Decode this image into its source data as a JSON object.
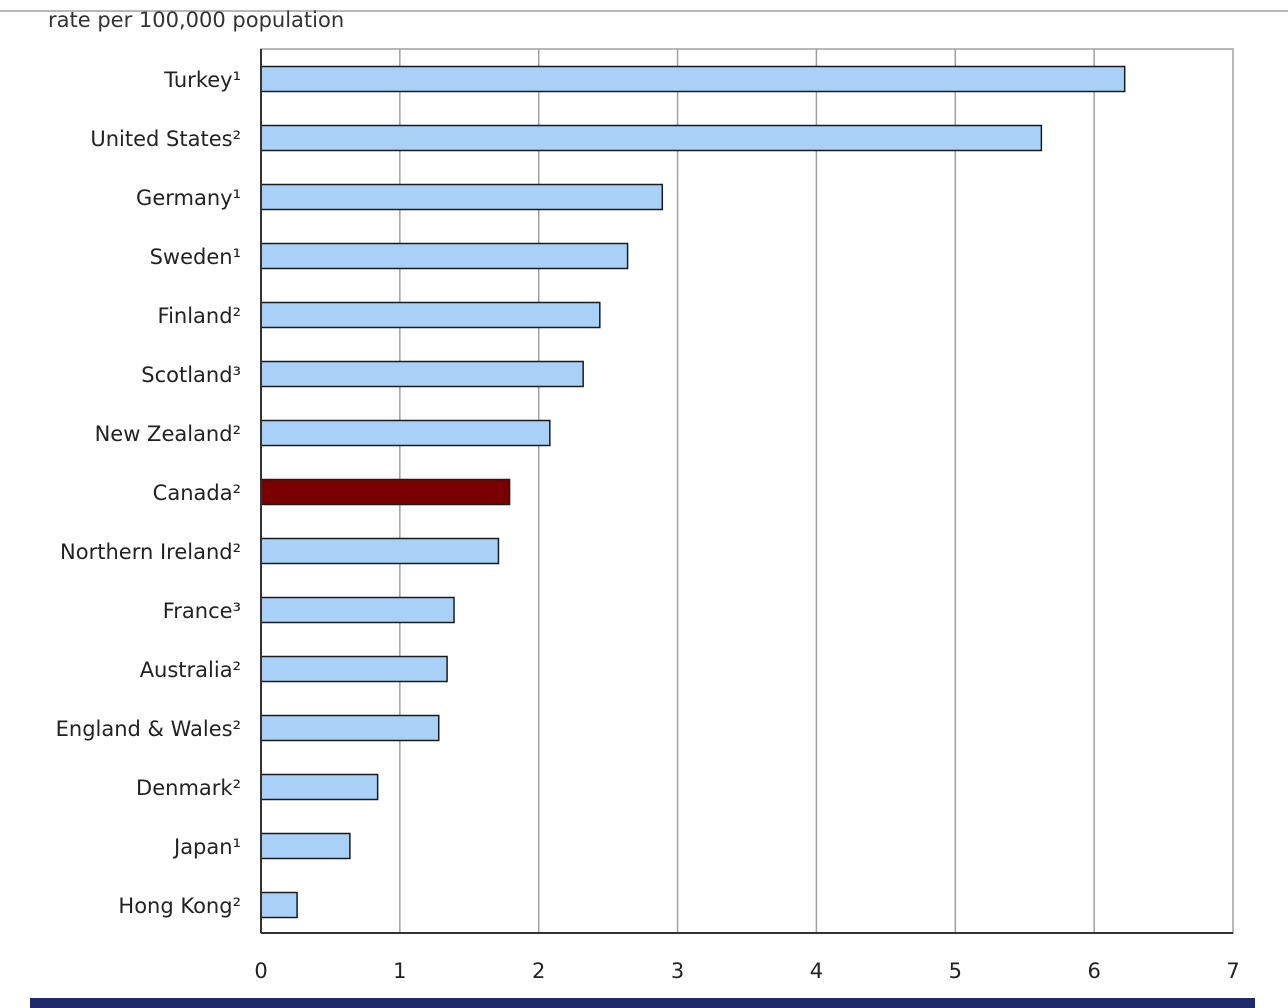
{
  "chart_data": {
    "type": "bar",
    "orientation": "horizontal",
    "title": "",
    "unit_label": "rate per 100,000 population",
    "xlabel": "",
    "ylabel": "",
    "categories": [
      "Turkey¹",
      "United States²",
      "Germany¹",
      "Sweden¹",
      "Finland²",
      "Scotland³",
      "New Zealand²",
      "Canada²",
      "Northern Ireland²",
      "France³",
      "Australia²",
      "England & Wales²",
      "Denmark²",
      "Japan¹",
      "Hong Kong²"
    ],
    "values": [
      6.22,
      5.62,
      2.89,
      2.64,
      2.44,
      2.32,
      2.08,
      1.79,
      1.71,
      1.39,
      1.34,
      1.28,
      0.84,
      0.64,
      0.26
    ],
    "highlight_category": "Canada²",
    "xlim": [
      0,
      7
    ],
    "xticks": [
      "0",
      "1",
      "2",
      "3",
      "4",
      "5",
      "6",
      "7"
    ],
    "grid": true,
    "legend": "none",
    "colors": {
      "bar": "#a9d1f7",
      "highlight": "#7a0000",
      "bar_border": "#1a1a1a",
      "grid": "#a0a0a0",
      "axis": "#333333",
      "bottom_band": "#1f2a6b"
    }
  }
}
